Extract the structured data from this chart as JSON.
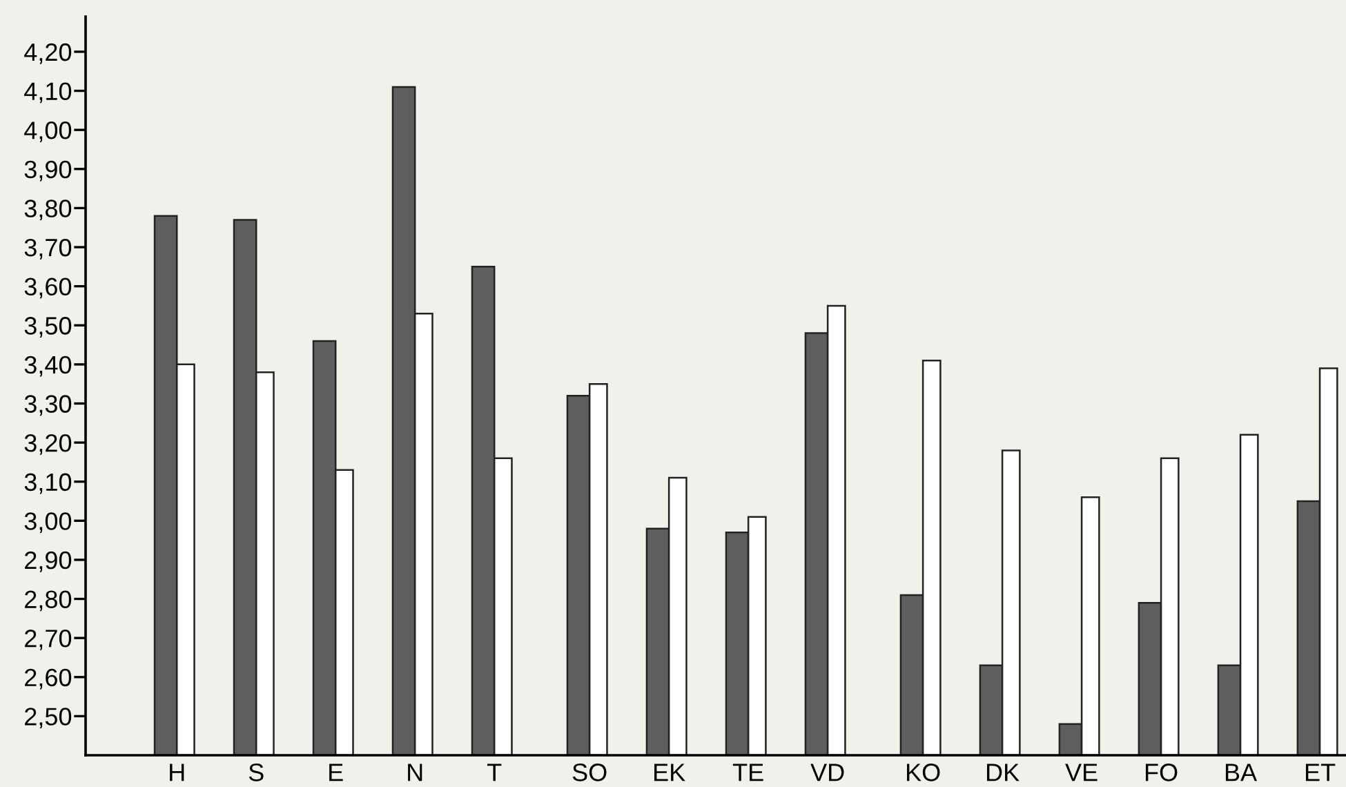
{
  "chart_data": {
    "type": "bar",
    "categories": [
      "H",
      "S",
      "E",
      "N",
      "T",
      null,
      "SO",
      "EK",
      "TE",
      "VD",
      null,
      "KO",
      "DK",
      "VE",
      "FO",
      "BA",
      "ET"
    ],
    "series": [
      {
        "color": "#5e5e5e",
        "values": [
          3.78,
          3.77,
          3.46,
          4.11,
          3.65,
          null,
          3.32,
          2.98,
          2.97,
          3.48,
          null,
          2.81,
          2.63,
          2.48,
          2.79,
          2.63,
          3.05
        ]
      },
      {
        "color": "#ffffff",
        "values": [
          3.4,
          3.38,
          3.13,
          3.53,
          3.16,
          null,
          3.35,
          3.11,
          3.01,
          3.55,
          null,
          3.41,
          3.18,
          3.06,
          3.16,
          3.22,
          3.39
        ]
      }
    ],
    "ylim": [
      2.4,
      4.29
    ],
    "yticks": [
      {
        "value": 2.5,
        "label": "2,50"
      },
      {
        "value": 2.6,
        "label": "2,60"
      },
      {
        "value": 2.7,
        "label": "2,70"
      },
      {
        "value": 2.8,
        "label": "2,80"
      },
      {
        "value": 2.9,
        "label": "2,90"
      },
      {
        "value": 3.0,
        "label": "3,00"
      },
      {
        "value": 3.1,
        "label": "3,10"
      },
      {
        "value": 3.2,
        "label": "3,20"
      },
      {
        "value": 3.3,
        "label": "3,30"
      },
      {
        "value": 3.4,
        "label": "3,40"
      },
      {
        "value": 3.5,
        "label": "3,50"
      },
      {
        "value": 3.6,
        "label": "3,60"
      },
      {
        "value": 3.7,
        "label": "3,70"
      },
      {
        "value": 3.8,
        "label": "3,80"
      },
      {
        "value": 3.9,
        "label": "3,90"
      },
      {
        "value": 4.0,
        "label": "4,00"
      },
      {
        "value": 4.1,
        "label": "4,10"
      },
      {
        "value": 4.2,
        "label": "4,20"
      }
    ],
    "grid": false,
    "legend": false
  }
}
